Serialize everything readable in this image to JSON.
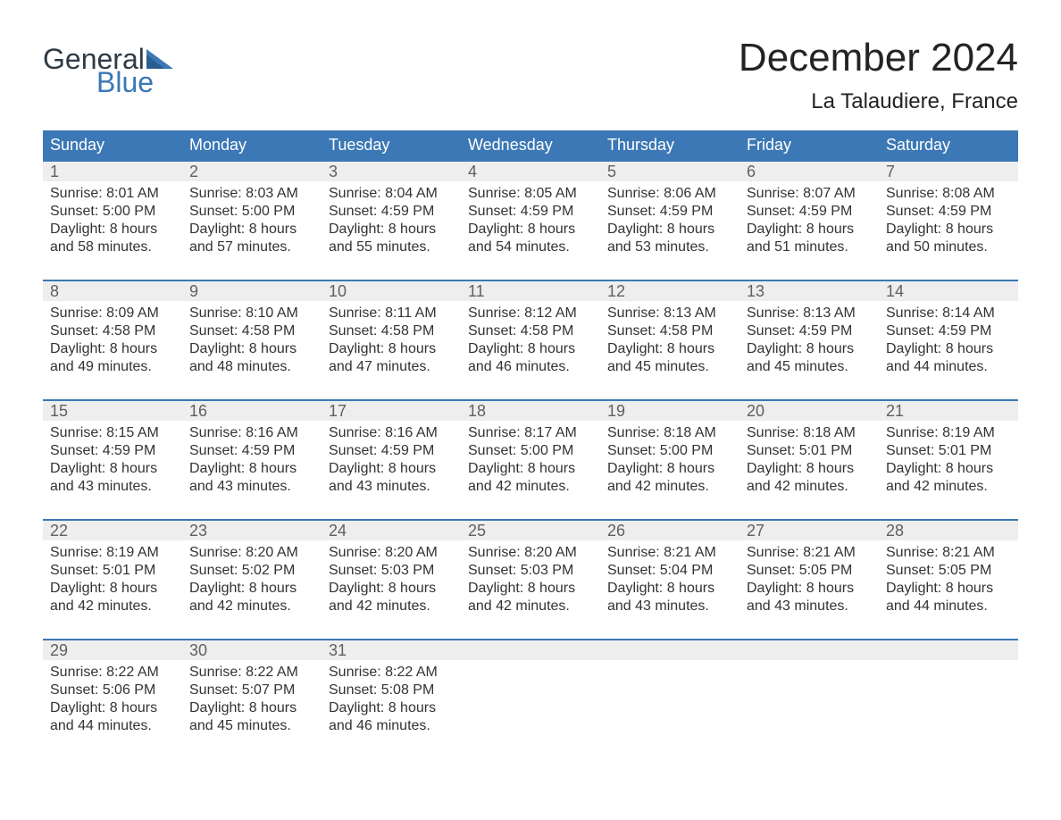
{
  "brand": {
    "word1": "General",
    "word2": "Blue",
    "text_color": "#2e3a44",
    "accent_color": "#3b78b5"
  },
  "title": "December 2024",
  "subtitle": "La Talaudiere, France",
  "colors": {
    "header_bg": "#3b78b5",
    "header_text": "#ffffff",
    "daynum_bg": "#eeeeee",
    "daynum_text": "#606060",
    "body_text": "#333333",
    "week_border": "#3b78b5",
    "page_bg": "#ffffff"
  },
  "typography": {
    "title_fontsize": 44,
    "subtitle_fontsize": 24,
    "header_fontsize": 18,
    "cell_fontsize": 16
  },
  "day_names": [
    "Sunday",
    "Monday",
    "Tuesday",
    "Wednesday",
    "Thursday",
    "Friday",
    "Saturday"
  ],
  "weeks": [
    [
      {
        "n": "1",
        "sr": "Sunrise: 8:01 AM",
        "ss": "Sunset: 5:00 PM",
        "d1": "Daylight: 8 hours",
        "d2": "and 58 minutes."
      },
      {
        "n": "2",
        "sr": "Sunrise: 8:03 AM",
        "ss": "Sunset: 5:00 PM",
        "d1": "Daylight: 8 hours",
        "d2": "and 57 minutes."
      },
      {
        "n": "3",
        "sr": "Sunrise: 8:04 AM",
        "ss": "Sunset: 4:59 PM",
        "d1": "Daylight: 8 hours",
        "d2": "and 55 minutes."
      },
      {
        "n": "4",
        "sr": "Sunrise: 8:05 AM",
        "ss": "Sunset: 4:59 PM",
        "d1": "Daylight: 8 hours",
        "d2": "and 54 minutes."
      },
      {
        "n": "5",
        "sr": "Sunrise: 8:06 AM",
        "ss": "Sunset: 4:59 PM",
        "d1": "Daylight: 8 hours",
        "d2": "and 53 minutes."
      },
      {
        "n": "6",
        "sr": "Sunrise: 8:07 AM",
        "ss": "Sunset: 4:59 PM",
        "d1": "Daylight: 8 hours",
        "d2": "and 51 minutes."
      },
      {
        "n": "7",
        "sr": "Sunrise: 8:08 AM",
        "ss": "Sunset: 4:59 PM",
        "d1": "Daylight: 8 hours",
        "d2": "and 50 minutes."
      }
    ],
    [
      {
        "n": "8",
        "sr": "Sunrise: 8:09 AM",
        "ss": "Sunset: 4:58 PM",
        "d1": "Daylight: 8 hours",
        "d2": "and 49 minutes."
      },
      {
        "n": "9",
        "sr": "Sunrise: 8:10 AM",
        "ss": "Sunset: 4:58 PM",
        "d1": "Daylight: 8 hours",
        "d2": "and 48 minutes."
      },
      {
        "n": "10",
        "sr": "Sunrise: 8:11 AM",
        "ss": "Sunset: 4:58 PM",
        "d1": "Daylight: 8 hours",
        "d2": "and 47 minutes."
      },
      {
        "n": "11",
        "sr": "Sunrise: 8:12 AM",
        "ss": "Sunset: 4:58 PM",
        "d1": "Daylight: 8 hours",
        "d2": "and 46 minutes."
      },
      {
        "n": "12",
        "sr": "Sunrise: 8:13 AM",
        "ss": "Sunset: 4:58 PM",
        "d1": "Daylight: 8 hours",
        "d2": "and 45 minutes."
      },
      {
        "n": "13",
        "sr": "Sunrise: 8:13 AM",
        "ss": "Sunset: 4:59 PM",
        "d1": "Daylight: 8 hours",
        "d2": "and 45 minutes."
      },
      {
        "n": "14",
        "sr": "Sunrise: 8:14 AM",
        "ss": "Sunset: 4:59 PM",
        "d1": "Daylight: 8 hours",
        "d2": "and 44 minutes."
      }
    ],
    [
      {
        "n": "15",
        "sr": "Sunrise: 8:15 AM",
        "ss": "Sunset: 4:59 PM",
        "d1": "Daylight: 8 hours",
        "d2": "and 43 minutes."
      },
      {
        "n": "16",
        "sr": "Sunrise: 8:16 AM",
        "ss": "Sunset: 4:59 PM",
        "d1": "Daylight: 8 hours",
        "d2": "and 43 minutes."
      },
      {
        "n": "17",
        "sr": "Sunrise: 8:16 AM",
        "ss": "Sunset: 4:59 PM",
        "d1": "Daylight: 8 hours",
        "d2": "and 43 minutes."
      },
      {
        "n": "18",
        "sr": "Sunrise: 8:17 AM",
        "ss": "Sunset: 5:00 PM",
        "d1": "Daylight: 8 hours",
        "d2": "and 42 minutes."
      },
      {
        "n": "19",
        "sr": "Sunrise: 8:18 AM",
        "ss": "Sunset: 5:00 PM",
        "d1": "Daylight: 8 hours",
        "d2": "and 42 minutes."
      },
      {
        "n": "20",
        "sr": "Sunrise: 8:18 AM",
        "ss": "Sunset: 5:01 PM",
        "d1": "Daylight: 8 hours",
        "d2": "and 42 minutes."
      },
      {
        "n": "21",
        "sr": "Sunrise: 8:19 AM",
        "ss": "Sunset: 5:01 PM",
        "d1": "Daylight: 8 hours",
        "d2": "and 42 minutes."
      }
    ],
    [
      {
        "n": "22",
        "sr": "Sunrise: 8:19 AM",
        "ss": "Sunset: 5:01 PM",
        "d1": "Daylight: 8 hours",
        "d2": "and 42 minutes."
      },
      {
        "n": "23",
        "sr": "Sunrise: 8:20 AM",
        "ss": "Sunset: 5:02 PM",
        "d1": "Daylight: 8 hours",
        "d2": "and 42 minutes."
      },
      {
        "n": "24",
        "sr": "Sunrise: 8:20 AM",
        "ss": "Sunset: 5:03 PM",
        "d1": "Daylight: 8 hours",
        "d2": "and 42 minutes."
      },
      {
        "n": "25",
        "sr": "Sunrise: 8:20 AM",
        "ss": "Sunset: 5:03 PM",
        "d1": "Daylight: 8 hours",
        "d2": "and 42 minutes."
      },
      {
        "n": "26",
        "sr": "Sunrise: 8:21 AM",
        "ss": "Sunset: 5:04 PM",
        "d1": "Daylight: 8 hours",
        "d2": "and 43 minutes."
      },
      {
        "n": "27",
        "sr": "Sunrise: 8:21 AM",
        "ss": "Sunset: 5:05 PM",
        "d1": "Daylight: 8 hours",
        "d2": "and 43 minutes."
      },
      {
        "n": "28",
        "sr": "Sunrise: 8:21 AM",
        "ss": "Sunset: 5:05 PM",
        "d1": "Daylight: 8 hours",
        "d2": "and 44 minutes."
      }
    ],
    [
      {
        "n": "29",
        "sr": "Sunrise: 8:22 AM",
        "ss": "Sunset: 5:06 PM",
        "d1": "Daylight: 8 hours",
        "d2": "and 44 minutes."
      },
      {
        "n": "30",
        "sr": "Sunrise: 8:22 AM",
        "ss": "Sunset: 5:07 PM",
        "d1": "Daylight: 8 hours",
        "d2": "and 45 minutes."
      },
      {
        "n": "31",
        "sr": "Sunrise: 8:22 AM",
        "ss": "Sunset: 5:08 PM",
        "d1": "Daylight: 8 hours",
        "d2": "and 46 minutes."
      },
      null,
      null,
      null,
      null
    ]
  ]
}
